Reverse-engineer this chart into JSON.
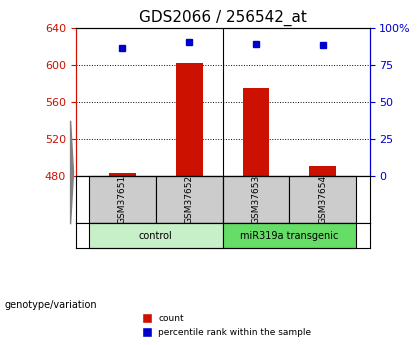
{
  "title": "GDS2066 / 256542_at",
  "samples": [
    "GSM37651",
    "GSM37652",
    "GSM37653",
    "GSM37654"
  ],
  "counts": [
    484,
    602,
    575,
    491
  ],
  "percentiles": [
    86,
    90,
    89,
    88
  ],
  "ylim_left": [
    480,
    640
  ],
  "ylim_right": [
    0,
    100
  ],
  "yticks_left": [
    480,
    520,
    560,
    600,
    640
  ],
  "yticks_right": [
    0,
    25,
    50,
    75,
    100
  ],
  "ytick_labels_right": [
    "0",
    "25",
    "50",
    "75",
    "100%"
  ],
  "groups": [
    {
      "label": "control",
      "samples": [
        0,
        1
      ],
      "color": "#c8f0c8"
    },
    {
      "label": "miR319a transgenic",
      "samples": [
        2,
        3
      ],
      "color": "#66dd66"
    }
  ],
  "bar_color": "#cc1100",
  "dot_color": "#0000cc",
  "bar_width": 0.4,
  "axis_color_left": "#cc1100",
  "axis_color_right": "#0000cc",
  "bg_label_row": "#cccccc",
  "title_fontsize": 11,
  "tick_fontsize": 8,
  "label_fontsize": 7
}
